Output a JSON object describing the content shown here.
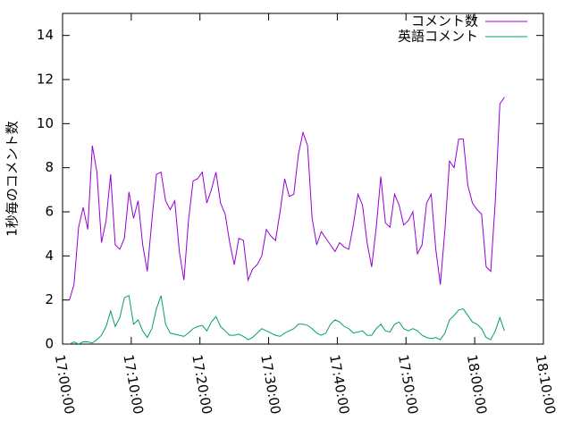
{
  "chart_data": {
    "type": "line",
    "ylabel": "1秒毎のコメント数",
    "x": [
      "17:01:00",
      "17:01:40",
      "17:02:20",
      "17:03:00",
      "17:03:40",
      "17:04:20",
      "17:05:00",
      "17:05:40",
      "17:06:20",
      "17:07:00",
      "17:07:40",
      "17:08:20",
      "17:09:00",
      "17:09:40",
      "17:10:20",
      "17:11:00",
      "17:11:40",
      "17:12:20",
      "17:13:00",
      "17:13:40",
      "17:14:20",
      "17:15:00",
      "17:15:40",
      "17:16:20",
      "17:17:00",
      "17:17:40",
      "17:18:20",
      "17:19:00",
      "17:19:40",
      "17:20:20",
      "17:21:00",
      "17:21:40",
      "17:22:20",
      "17:23:00",
      "17:23:40",
      "17:24:20",
      "17:25:00",
      "17:25:40",
      "17:26:20",
      "17:27:00",
      "17:27:40",
      "17:28:20",
      "17:29:00",
      "17:29:40",
      "17:30:20",
      "17:31:00",
      "17:31:40",
      "17:32:20",
      "17:33:00",
      "17:33:40",
      "17:34:20",
      "17:35:00",
      "17:35:40",
      "17:36:20",
      "17:37:00",
      "17:37:40",
      "17:38:20",
      "17:39:00",
      "17:39:40",
      "17:40:20",
      "17:41:00",
      "17:41:40",
      "17:42:20",
      "17:43:00",
      "17:43:40",
      "17:44:20",
      "17:45:00",
      "17:45:40",
      "17:46:20",
      "17:47:00",
      "17:47:40",
      "17:48:20",
      "17:49:00",
      "17:49:40",
      "17:50:20",
      "17:51:00",
      "17:51:40",
      "17:52:20",
      "17:53:00",
      "17:53:40",
      "17:54:20",
      "17:55:00",
      "17:55:40",
      "17:56:20",
      "17:57:00",
      "17:57:40",
      "17:58:20",
      "17:59:00",
      "17:59:40",
      "18:00:20",
      "18:01:00",
      "18:01:40",
      "18:02:20",
      "18:03:00",
      "18:03:40",
      "18:04:20"
    ],
    "series": [
      {
        "name": "コメント数",
        "color": "#9400d3",
        "values": [
          2.0,
          2.7,
          5.3,
          6.2,
          5.2,
          9.0,
          7.8,
          4.6,
          5.6,
          7.7,
          4.5,
          4.3,
          4.8,
          6.9,
          5.7,
          6.5,
          4.5,
          3.3,
          5.6,
          7.7,
          7.8,
          6.5,
          6.1,
          6.5,
          4.2,
          2.9,
          5.6,
          7.4,
          7.5,
          7.8,
          6.4,
          7.0,
          7.8,
          6.4,
          5.9,
          4.6,
          3.6,
          4.8,
          4.7,
          2.9,
          3.4,
          3.6,
          4.0,
          5.2,
          4.9,
          4.7,
          6.0,
          7.5,
          6.7,
          6.8,
          8.6,
          9.6,
          9.0,
          5.7,
          4.5,
          5.1,
          4.8,
          4.5,
          4.2,
          4.6,
          4.4,
          4.3,
          5.4,
          6.8,
          6.3,
          4.6,
          3.5,
          5.3,
          7.6,
          5.5,
          5.3,
          6.8,
          6.3,
          5.4,
          5.6,
          6.0,
          4.1,
          4.5,
          6.4,
          6.8,
          4.3,
          2.7,
          5.2,
          8.3,
          8.0,
          9.3,
          9.3,
          7.2,
          6.4,
          6.1,
          5.9,
          3.5,
          3.3,
          6.5,
          10.9,
          11.2
        ]
      },
      {
        "name": "英語コメント",
        "color": "#009e73",
        "values": [
          0.0,
          0.1,
          0.0,
          0.1,
          0.1,
          0.05,
          0.2,
          0.4,
          0.8,
          1.5,
          0.8,
          1.2,
          2.1,
          2.2,
          0.9,
          1.1,
          0.6,
          0.3,
          0.7,
          1.6,
          2.2,
          0.9,
          0.5,
          0.45,
          0.4,
          0.35,
          0.5,
          0.7,
          0.8,
          0.85,
          0.6,
          1.0,
          1.25,
          0.8,
          0.6,
          0.4,
          0.4,
          0.45,
          0.35,
          0.2,
          0.3,
          0.5,
          0.7,
          0.6,
          0.5,
          0.4,
          0.35,
          0.5,
          0.6,
          0.7,
          0.9,
          0.9,
          0.85,
          0.7,
          0.5,
          0.4,
          0.5,
          0.9,
          1.1,
          1.0,
          0.8,
          0.7,
          0.5,
          0.55,
          0.6,
          0.4,
          0.4,
          0.7,
          0.9,
          0.6,
          0.55,
          0.9,
          1.0,
          0.7,
          0.6,
          0.7,
          0.6,
          0.4,
          0.3,
          0.25,
          0.3,
          0.2,
          0.5,
          1.1,
          1.3,
          1.55,
          1.6,
          1.3,
          1.0,
          0.9,
          0.7,
          0.3,
          0.2,
          0.6,
          1.2,
          0.6
        ]
      }
    ],
    "xlim": [
      "17:00:00",
      "18:10:00"
    ],
    "xticks": [
      "17:00:00",
      "17:10:00",
      "17:20:00",
      "17:30:00",
      "17:40:00",
      "17:50:00",
      "18:00:00",
      "18:10:00"
    ],
    "ylim": [
      0,
      15
    ],
    "yticks": [
      0,
      2,
      4,
      6,
      8,
      10,
      12,
      14
    ],
    "legend": "top-right"
  }
}
